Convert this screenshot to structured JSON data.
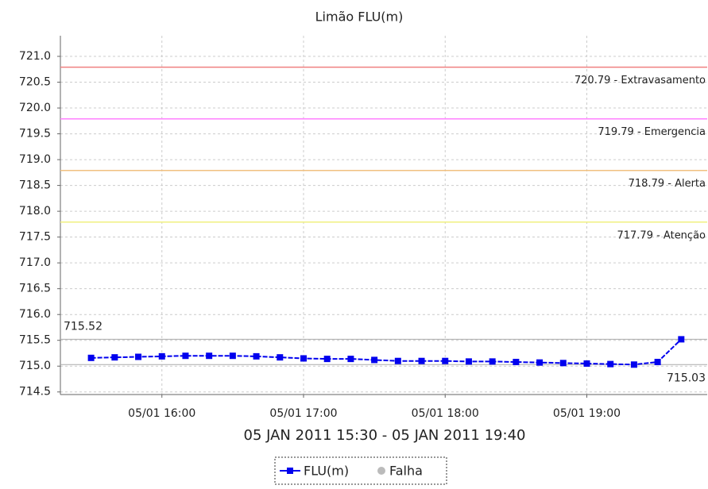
{
  "chart_data": {
    "type": "line",
    "title": "Limão FLU(m)",
    "subtitle": "05 JAN 2011 15:30 - 05 JAN 2011 19:40",
    "x": [
      "05/01 15:30",
      "05/01 15:40",
      "05/01 15:50",
      "05/01 16:00",
      "05/01 16:10",
      "05/01 16:20",
      "05/01 16:30",
      "05/01 16:40",
      "05/01 16:50",
      "05/01 17:00",
      "05/01 17:10",
      "05/01 17:20",
      "05/01 17:30",
      "05/01 17:40",
      "05/01 17:50",
      "05/01 18:00",
      "05/01 18:10",
      "05/01 18:20",
      "05/01 18:30",
      "05/01 18:40",
      "05/01 18:50",
      "05/01 19:00",
      "05/01 19:10",
      "05/01 19:20",
      "05/01 19:30",
      "05/01 19:40"
    ],
    "series": [
      {
        "name": "FLU(m)",
        "color": "#0000ee",
        "values": [
          715.16,
          715.17,
          715.18,
          715.19,
          715.2,
          715.2,
          715.2,
          715.19,
          715.17,
          715.15,
          715.14,
          715.14,
          715.12,
          715.1,
          715.1,
          715.1,
          715.09,
          715.09,
          715.08,
          715.07,
          715.06,
          715.05,
          715.04,
          715.03,
          715.08,
          715.52
        ]
      }
    ],
    "legend_extra": {
      "name": "Falha",
      "color": "#bbbbbb"
    },
    "xlim": [
      "05/01 15:17",
      "05/01 19:51"
    ],
    "xticks": [
      "05/01 16:00",
      "05/01 17:00",
      "05/01 18:00",
      "05/01 19:00"
    ],
    "ylim": [
      714.45,
      721.4
    ],
    "yticks": [
      {
        "value": 714.5,
        "label": "714.5"
      },
      {
        "value": 715,
        "label": "715.0"
      },
      715.5,
      {
        "value": 716,
        "label": "716.0"
      },
      716.5,
      {
        "value": 717,
        "label": "717.0"
      },
      717.5,
      {
        "value": 718,
        "label": "718.0"
      },
      718.5,
      {
        "value": 719,
        "label": "719.0"
      },
      719.5,
      {
        "value": 720,
        "label": "720.0"
      },
      720.5,
      {
        "value": 721,
        "label": "721.0"
      }
    ],
    "grid": true,
    "reference_lines": [
      {
        "value": 720.79,
        "label": "720.79 - Extravasamento",
        "color": "#f08080"
      },
      {
        "value": 719.79,
        "label": "719.79 - Emergencia",
        "color": "#ff80ff"
      },
      {
        "value": 718.79,
        "label": "718.79 - Alerta",
        "color": "#f0c080"
      },
      {
        "value": 717.79,
        "label": "717.79 - Atenção",
        "color": "#f0f080"
      }
    ],
    "markers": [
      {
        "value": 715.52,
        "label": "715.52"
      },
      {
        "value": 715.03,
        "label": "715.03"
      }
    ]
  }
}
